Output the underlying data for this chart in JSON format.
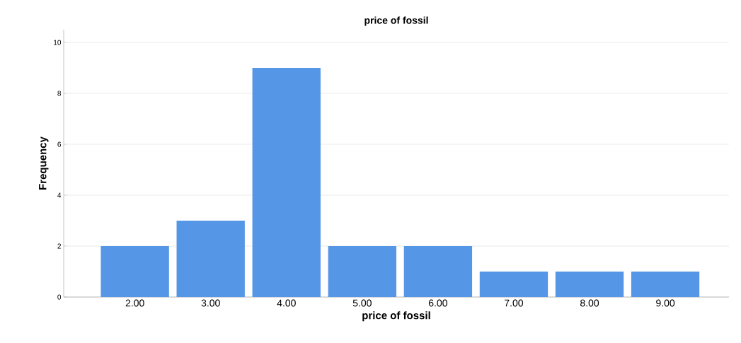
{
  "chart_data": {
    "type": "bar",
    "title": "price of fossil",
    "xlabel": "price of fossil",
    "ylabel": "Frequency",
    "categories": [
      "2.00",
      "3.00",
      "4.00",
      "5.00",
      "6.00",
      "7.00",
      "8.00",
      "9.00"
    ],
    "values": [
      2,
      3,
      9,
      2,
      2,
      1,
      1,
      1
    ],
    "color": "#5596e6",
    "ylim": [
      0,
      10.5
    ],
    "yticks": [
      0,
      2,
      4,
      6,
      8,
      10
    ],
    "grid": "y"
  }
}
